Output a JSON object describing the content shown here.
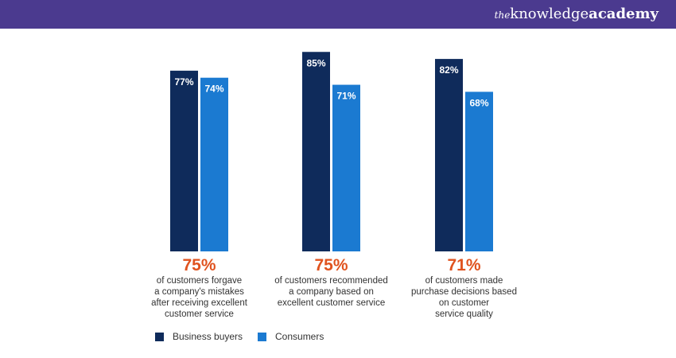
{
  "header": {
    "brand_the": "the",
    "brand_knowledge": "knowledge",
    "brand_academy": "academy",
    "bar_color": "#4b3a8f"
  },
  "chart_data": {
    "type": "bar",
    "categories": [
      "of customers forgave a company's mistakes after receiving excellent customer service",
      "of customers recommended a company based on excellent customer service",
      "of customers made purchase decisions based on customer service quality"
    ],
    "category_highlights": [
      "75%",
      "75%",
      "71%"
    ],
    "category_lines": [
      [
        "of customers forgave",
        "a company's mistakes",
        "after receiving excellent",
        "customer service"
      ],
      [
        "of customers recommended",
        "a company based on",
        "excellent customer service"
      ],
      [
        "of customers made",
        "purchase decisions based",
        "on customer",
        "service quality"
      ]
    ],
    "series": [
      {
        "name": "Business buyers",
        "color": "#0f2b5b",
        "values": [
          77,
          85,
          82
        ],
        "labels": [
          "77%",
          "85%",
          "82%"
        ]
      },
      {
        "name": "Consumers",
        "color": "#1b7ad1",
        "values": [
          74,
          71,
          68
        ],
        "labels": [
          "74%",
          "71%",
          "68%"
        ]
      }
    ],
    "ylim": [
      0,
      100
    ],
    "grid": false,
    "legend": "bottom-left",
    "title": "",
    "xlabel": "",
    "ylabel": ""
  }
}
